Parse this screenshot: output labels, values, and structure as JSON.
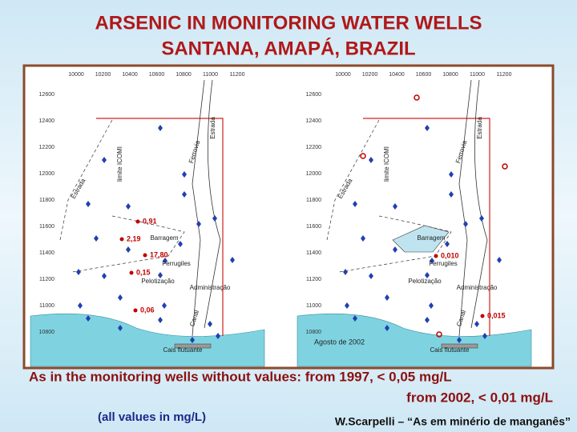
{
  "title": [
    "ARSENIC IN MONITORING WATER WELLS",
    "SANTANA, AMAPÁ, BRAZIL"
  ],
  "maps": [
    {
      "xticks": [
        "10000",
        "10200",
        "10400",
        "10600",
        "10800",
        "11000",
        "11200"
      ],
      "yticks": [
        "12600",
        "12400",
        "12200",
        "12000",
        "11800",
        "11600",
        "11400",
        "11200",
        "11000",
        "10800"
      ],
      "places": [
        "Barragem",
        "Ferrugiles",
        "Pelotização",
        "Administração",
        "Ferrovia",
        "limite ICOMI",
        "Estrada",
        "Canal",
        "Cais flutuante",
        "Estrada"
      ],
      "samples": [
        "0,91",
        "2,19",
        "17,80",
        "0,15",
        "0,06"
      ]
    },
    {
      "xticks": [
        "10000",
        "10200",
        "10400",
        "10600",
        "10800",
        "11000",
        "11200"
      ],
      "yticks": [
        "12600",
        "12400",
        "12200",
        "12000",
        "11800",
        "11600",
        "11400",
        "11200",
        "11000",
        "10800"
      ],
      "places": [
        "Barragem",
        "Ferrugiles",
        "Pelotização",
        "Administração",
        "Ferrovia",
        "limite ICOMI",
        "Estrada",
        "Canal",
        "Cais flutuante",
        "Estrada"
      ],
      "samples": [
        "0,010",
        "0,015"
      ],
      "date": "Agosto de 2002"
    }
  ],
  "footer": {
    "note": "As in the monitoring wells without values:  from 1997, < 0,05 mg/L",
    "note2": "from 2002, < 0,01 mg/L",
    "units": "(all values in mg/L)",
    "credit": "W.Scarpelli – “As em minério de manganês”"
  }
}
